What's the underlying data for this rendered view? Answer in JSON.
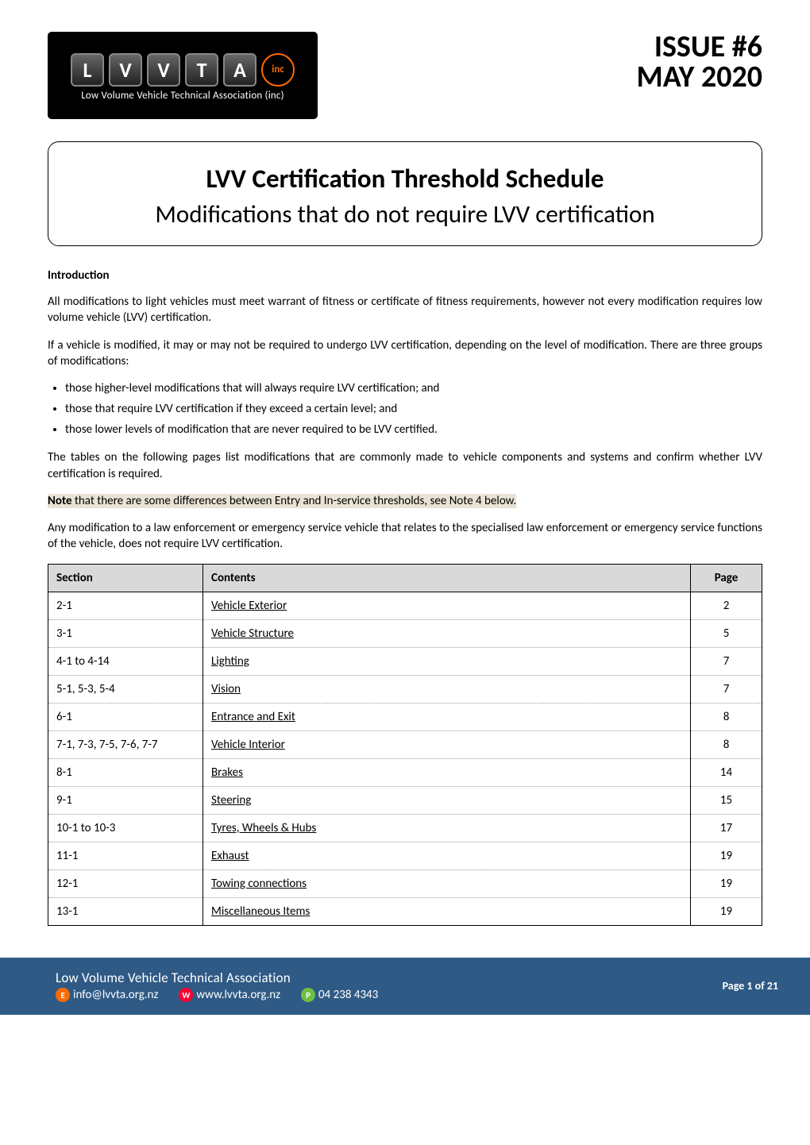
{
  "logo": {
    "letters": [
      "L",
      "V",
      "V",
      "T",
      "A"
    ],
    "inc": "inc",
    "subtitle": "Low Volume Vehicle Technical Association (inc)"
  },
  "issue": {
    "line1": "ISSUE #6",
    "line2": "MAY 2020"
  },
  "title": {
    "main": "LVV Certification Threshold Schedule",
    "sub": "Modifications that do not require LVV certification"
  },
  "intro_heading": "Introduction",
  "paragraphs": {
    "p1": "All modifications to light vehicles must meet warrant of fitness or certificate of fitness requirements, however not every modification requires low volume vehicle (LVV) certification.",
    "p2": "If a vehicle is modified, it may or may not be required to undergo LVV certification, depending on the level of modification. There are three groups of modifications:",
    "p3": "The tables on the following pages list modifications that are commonly made to vehicle components and systems and confirm whether LVV certification is required.",
    "p4_prefix": "Note",
    "p4_rest": " that there are some differences between Entry and In-service thresholds, see Note 4 below.",
    "p5": "Any modification to a law enforcement or emergency service vehicle that relates to the specialised law enforcement or emergency service functions of the vehicle, does not require LVV certification."
  },
  "bullets": [
    "those higher-level modifications that will always require LVV certification; and",
    "those that require LVV certification if they exceed a certain level; and",
    "those lower levels of modification that are never required to be LVV certified."
  ],
  "table": {
    "headers": {
      "section": "Section",
      "contents": "Contents",
      "page": "Page"
    },
    "rows": [
      {
        "section": "2-1",
        "contents": "Vehicle Exterior",
        "page": "2"
      },
      {
        "section": "3-1",
        "contents": "Vehicle Structure",
        "page": "5"
      },
      {
        "section": "4-1 to 4-14",
        "contents": "Lighting",
        "page": "7"
      },
      {
        "section": "5-1, 5-3, 5-4",
        "contents": "Vision",
        "page": "7"
      },
      {
        "section": "6-1",
        "contents": "Entrance and Exit",
        "page": "8"
      },
      {
        "section": "7-1, 7-3, 7-5, 7-6, 7-7",
        "contents": "Vehicle Interior",
        "page": "8"
      },
      {
        "section": "8-1",
        "contents": "Brakes",
        "page": "14"
      },
      {
        "section": "9-1",
        "contents": "Steering",
        "page": "15"
      },
      {
        "section": "10-1 to 10-3",
        "contents": "Tyres, Wheels & Hubs",
        "page": "17"
      },
      {
        "section": "11-1",
        "contents": "Exhaust",
        "page": "19"
      },
      {
        "section": "12-1",
        "contents": "Towing connections",
        "page": "19"
      },
      {
        "section": "13-1",
        "contents": "Miscellaneous Items",
        "page": "19"
      }
    ]
  },
  "footer": {
    "title": "Low Volume Vehicle Technical Association",
    "email": "info@lvvta.org.nz",
    "web": "www.lvvta.org.nz",
    "phone": "04 238 4343",
    "pager": "Page 1 of 21"
  },
  "colors": {
    "header_bg": "#d9d9d9",
    "footer_bg": "#2f5a86",
    "highlight_bg": "#e9e3d6",
    "icon_email": "#ff6a00",
    "icon_web": "#ff0033",
    "icon_phone": "#6fbf44"
  }
}
